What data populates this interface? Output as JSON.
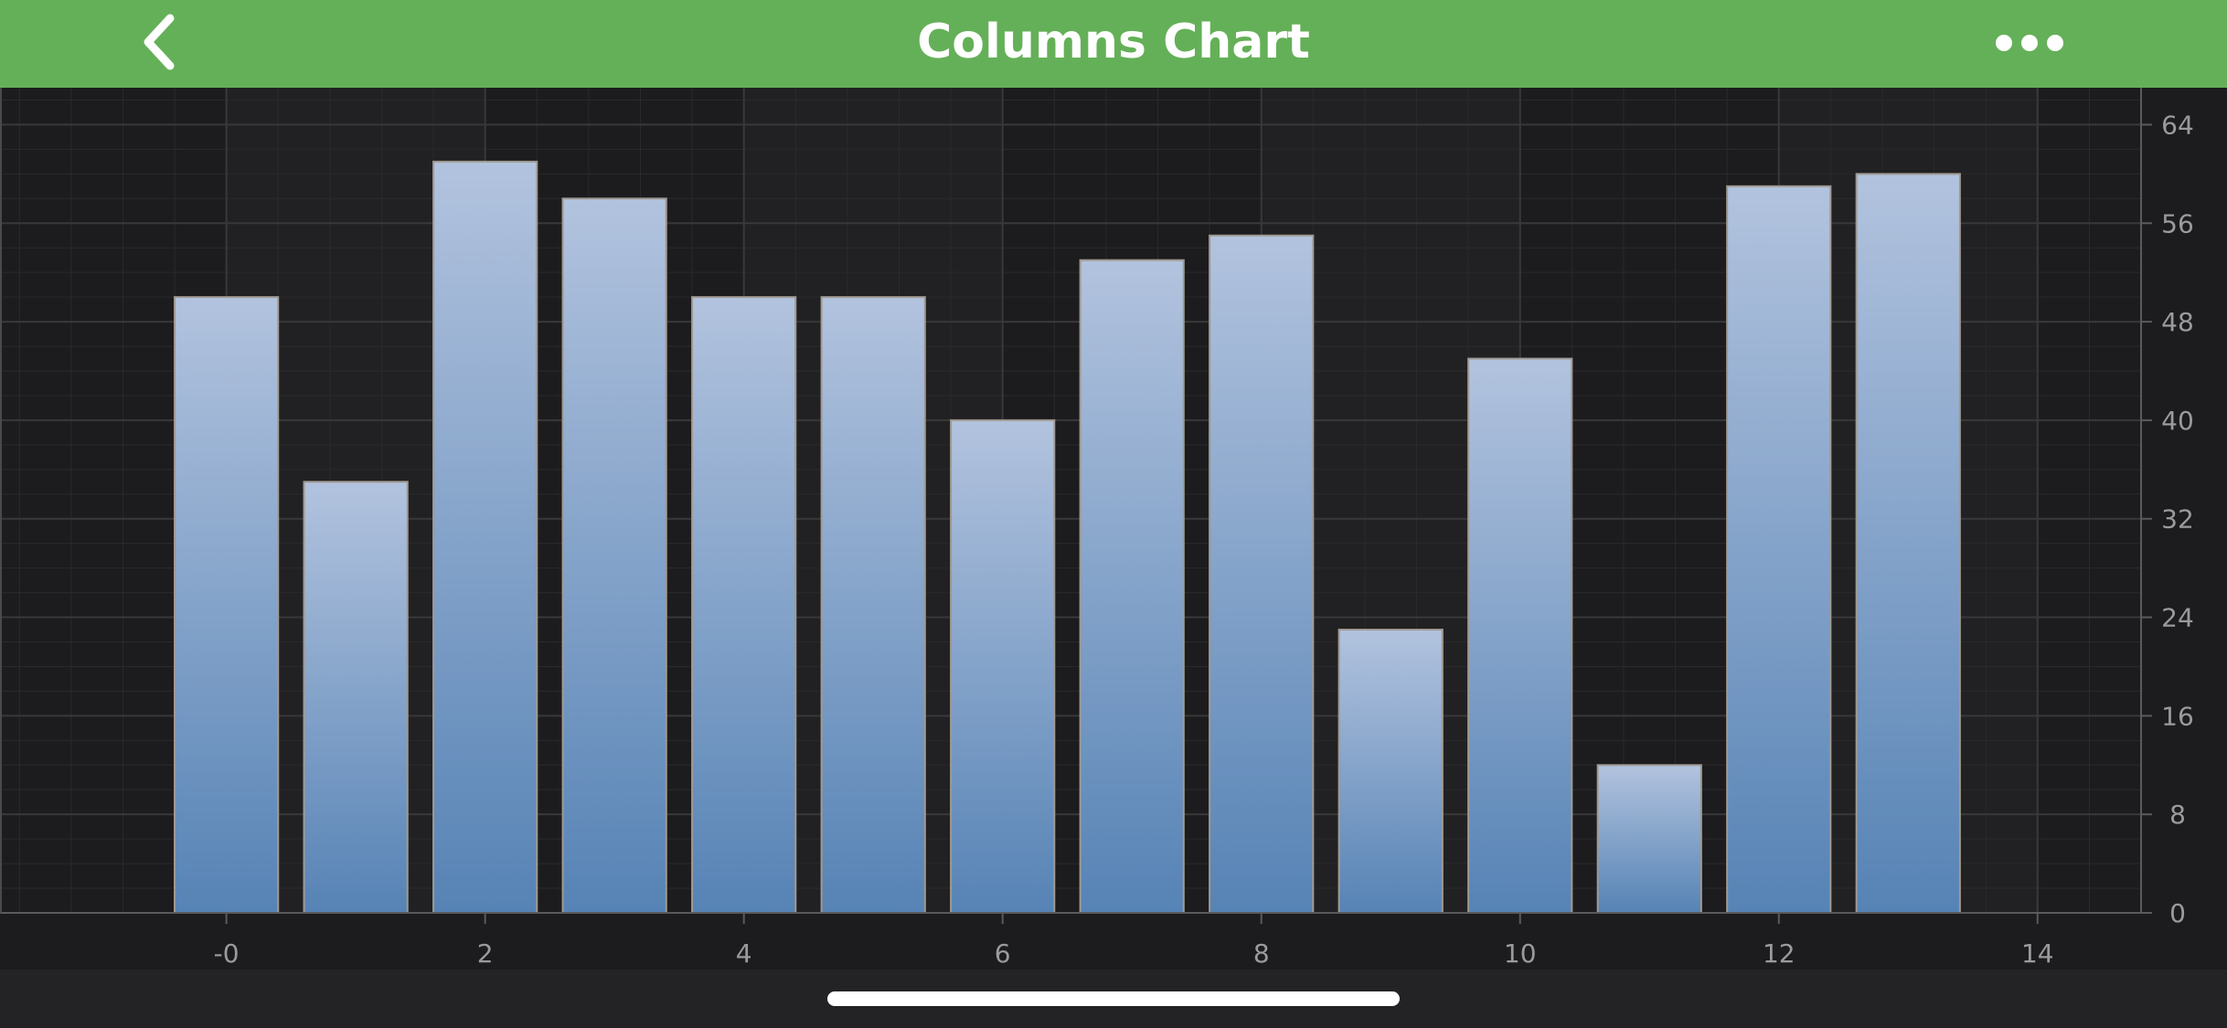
{
  "header": {
    "title": "Columns Chart",
    "back_icon": "chevron-left-icon",
    "more_icon": "more-horizontal-icon"
  },
  "colors": {
    "header_bg": "#64b058",
    "plot_bg": "#1c1c1e",
    "column_top": "#b2c3de",
    "column_bottom": "#5683b5",
    "column_stroke": "#a09a92",
    "tick_text": "#9b9b9f"
  },
  "chart_data": {
    "type": "bar",
    "title": "",
    "xlabel": "",
    "ylabel": "",
    "x": [
      0,
      1,
      2,
      3,
      4,
      5,
      6,
      7,
      8,
      9,
      10,
      11,
      12,
      13
    ],
    "values": [
      50,
      35,
      61,
      58,
      50,
      50,
      40,
      53,
      55,
      23,
      45,
      12,
      59,
      60
    ],
    "xlim": [
      -1.75,
      14.8
    ],
    "ylim": [
      0,
      67
    ],
    "x_ticks": [
      0,
      2,
      4,
      6,
      8,
      10,
      12,
      14
    ],
    "x_tick_labels": [
      "-0",
      "2",
      "4",
      "6",
      "8",
      "10",
      "12",
      "14"
    ],
    "y_ticks": [
      0,
      8,
      16,
      24,
      32,
      40,
      48,
      56,
      64
    ],
    "y_tick_labels": [
      "0",
      "8",
      "16",
      "24",
      "32",
      "40",
      "48",
      "56",
      "64"
    ],
    "y_axis_position": "right",
    "grid": true,
    "legend": "none"
  }
}
